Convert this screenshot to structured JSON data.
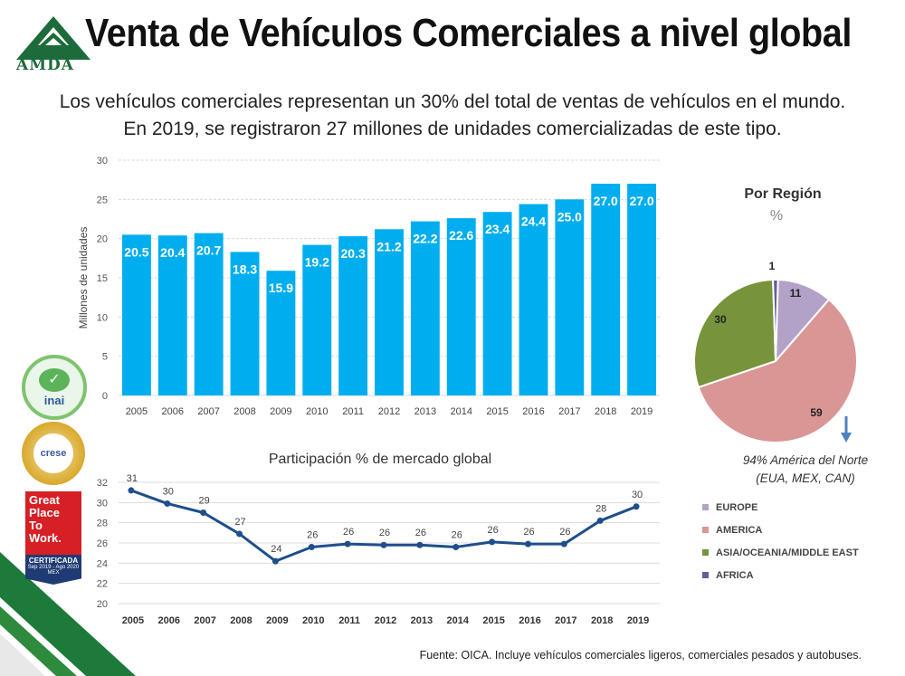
{
  "header": {
    "logo_text": "AMDA",
    "title": "Venta de Vehículos Comerciales a nivel global",
    "subtitle_line1": "Los vehículos comerciales representan un 30% del total de ventas de vehículos en el mundo.",
    "subtitle_line2": "En 2019, se registraron 27 millones de unidades comercializadas de este tipo."
  },
  "chart_data": [
    {
      "type": "bar",
      "title": "",
      "ylabel": "Millones de unidades",
      "xlabel": "",
      "ylim": [
        0,
        30
      ],
      "yticks": [
        0,
        5,
        10,
        15,
        20,
        25,
        30
      ],
      "categories": [
        "2005",
        "2006",
        "2007",
        "2008",
        "2009",
        "2010",
        "2011",
        "2012",
        "2013",
        "2014",
        "2015",
        "2016",
        "2017",
        "2018",
        "2019"
      ],
      "values": [
        20.5,
        20.4,
        20.7,
        18.3,
        15.9,
        19.2,
        20.3,
        21.2,
        22.2,
        22.6,
        23.4,
        24.4,
        25.0,
        27.0,
        27.0
      ],
      "value_labels": [
        "20.5",
        "20.4",
        "20.7",
        "18.3",
        "15.9",
        "19.2",
        "20.3",
        "21.2",
        "22.2",
        "22.6",
        "23.4",
        "24.4",
        "25.0",
        "27.0",
        "27.0"
      ],
      "grid": true,
      "color": "#00aeef"
    },
    {
      "type": "line",
      "title": "Participación % de mercado global",
      "ylim": [
        20,
        32
      ],
      "yticks": [
        20,
        22,
        24,
        26,
        28,
        30,
        32
      ],
      "categories": [
        "2005",
        "2006",
        "2007",
        "2008",
        "2009",
        "2010",
        "2011",
        "2012",
        "2013",
        "2014",
        "2015",
        "2016",
        "2017",
        "2018",
        "2019"
      ],
      "values": [
        31.2,
        29.9,
        29.0,
        26.9,
        24.2,
        25.6,
        25.9,
        25.8,
        25.8,
        25.6,
        26.1,
        25.9,
        25.9,
        28.2,
        29.6
      ],
      "value_labels": [
        "31",
        "30",
        "29",
        "27",
        "24",
        "26",
        "26",
        "26",
        "26",
        "26",
        "26",
        "26",
        "26",
        "28",
        "30"
      ],
      "grid": true,
      "color": "#1f4e8c"
    },
    {
      "type": "pie",
      "title": "Por Región",
      "unit": "%",
      "slices": [
        {
          "name": "EUROPE",
          "value": 11,
          "label": "11",
          "color": "#b3a2c7"
        },
        {
          "name": "AMERICA",
          "value": 59,
          "label": "59",
          "color": "#d99694"
        },
        {
          "name": "ASIA/OCEANIA/MIDDLE EAST",
          "value": 30,
          "label": "30",
          "color": "#77933c"
        },
        {
          "name": "AFRICA",
          "value": 1,
          "label": "1",
          "color": "#5f5f9f"
        }
      ],
      "note_line1": "94% América del Norte",
      "note_line2": "(EUA, MEX, CAN)",
      "arrow_color": "#4f81bd"
    }
  ],
  "badges": {
    "inai": "inai",
    "crese": "crese",
    "gptw_line1": "Great",
    "gptw_line2": "Place",
    "gptw_line3": "To",
    "gptw_line4": "Work.",
    "gptw_cert": "CERTIFICADA",
    "gptw_dates": "Sep 2019 - Ago 2020",
    "gptw_country": "MEX"
  },
  "footer": {
    "source": "Fuente: OICA. Incluye vehículos comerciales ligeros, comerciales pesados y autobuses."
  }
}
